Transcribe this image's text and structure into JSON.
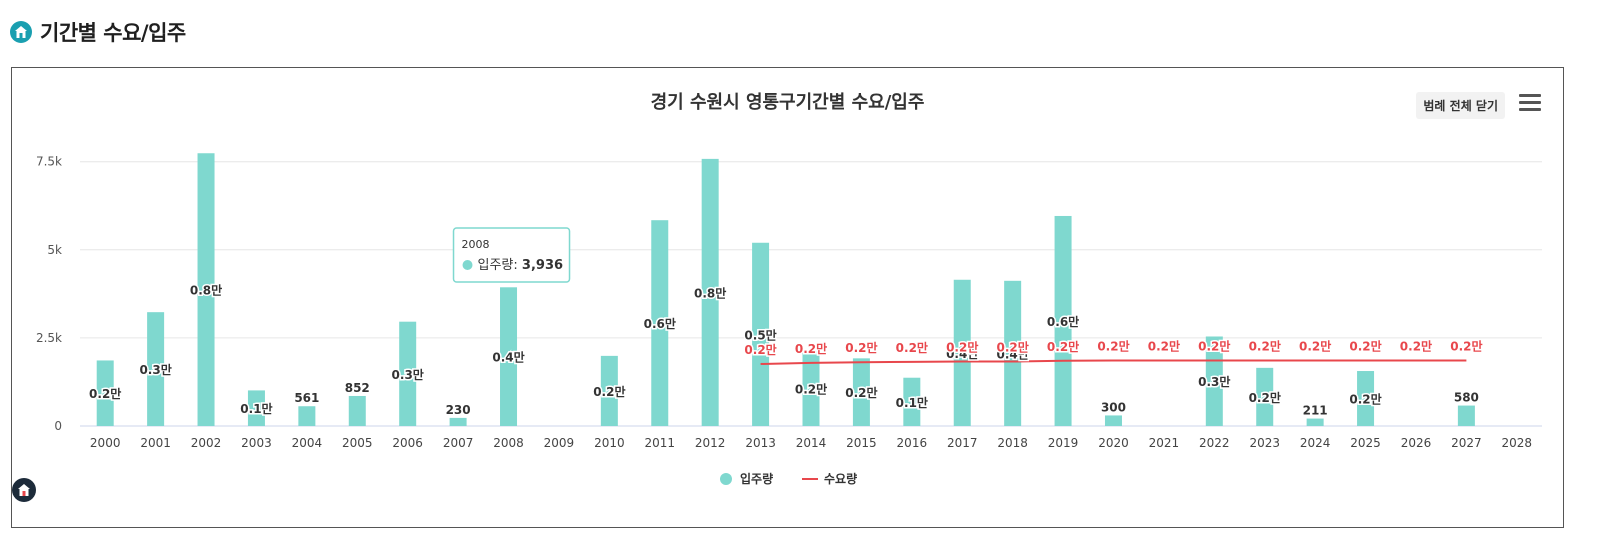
{
  "header": {
    "title": "기간별 수요/입주",
    "icon": "home-icon"
  },
  "chart_controls": {
    "legend_toggle_label": "범례 전체 닫기",
    "menu_icon": "hamburger-menu-icon"
  },
  "colors": {
    "supply": "#7fd8cf",
    "demand": "#e8474c",
    "accent": "#1a9fb0"
  },
  "tooltip": {
    "year": "2008",
    "series": "입주량",
    "value": "3,936"
  },
  "chart_data": {
    "type": "bar+line",
    "title": "경기 수원시 영통구기간별 수요/입주",
    "xlabel": "",
    "ylabel": "",
    "ylim": [
      0,
      7500
    ],
    "yticks": [
      0,
      2500,
      5000,
      7500
    ],
    "ytick_labels": [
      "0",
      "2.5k",
      "5k",
      "7.5k"
    ],
    "grid": true,
    "legend_position": "bottom-center",
    "categories": [
      "2000",
      "2001",
      "2002",
      "2003",
      "2004",
      "2005",
      "2006",
      "2007",
      "2008",
      "2009",
      "2010",
      "2011",
      "2012",
      "2013",
      "2014",
      "2015",
      "2016",
      "2017",
      "2018",
      "2019",
      "2020",
      "2021",
      "2022",
      "2023",
      "2024",
      "2025",
      "2026",
      "2027",
      "2028"
    ],
    "series": [
      {
        "name": "입주량",
        "type": "bar",
        "values": [
          1860,
          3230,
          7740,
          1010,
          561,
          852,
          2960,
          230,
          3936,
          0,
          1990,
          5840,
          7580,
          5200,
          2130,
          1920,
          1370,
          4150,
          4120,
          5960,
          300,
          0,
          2540,
          1650,
          211,
          1560,
          0,
          580,
          0
        ],
        "data_labels": [
          "0.2만",
          "0.3만",
          "0.8만",
          "0.1만",
          "561",
          "852",
          "0.3만",
          "230",
          "0.4만",
          "",
          "0.2만",
          "0.6만",
          "0.8만",
          "0.5만",
          "0.2만",
          "0.2만",
          "0.1만",
          "0.4만",
          "0.4만",
          "0.6만",
          "300",
          "",
          "0.3만",
          "0.2만",
          "211",
          "0.2만",
          "",
          "580",
          ""
        ]
      },
      {
        "name": "수요량",
        "type": "line",
        "values": [
          null,
          null,
          null,
          null,
          null,
          null,
          null,
          null,
          null,
          null,
          null,
          null,
          null,
          1760,
          1790,
          1810,
          1820,
          1830,
          1830,
          1850,
          1860,
          1860,
          1860,
          1860,
          1860,
          1860,
          1860,
          1860,
          null
        ],
        "data_labels": [
          "",
          "",
          "",
          "",
          "",
          "",
          "",
          "",
          "",
          "",
          "",
          "",
          "",
          "0.2만",
          "0.2만",
          "0.2만",
          "0.2만",
          "0.2만",
          "0.2만",
          "0.2만",
          "0.2만",
          "0.2만",
          "0.2만",
          "0.2만",
          "0.2만",
          "0.2만",
          "0.2만",
          "0.2만",
          ""
        ]
      }
    ]
  }
}
